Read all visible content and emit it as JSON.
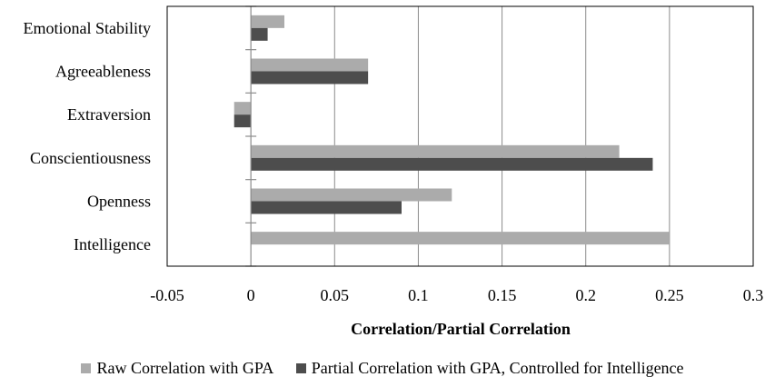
{
  "chart_data": {
    "type": "bar",
    "orientation": "horizontal",
    "title": "",
    "xlabel": "Correlation/Partial Correlation",
    "ylabel": "",
    "categories": [
      "Emotional Stability",
      "Agreeableness",
      "Extraversion",
      "Conscientiousness",
      "Openness",
      "Intelligence"
    ],
    "series": [
      {
        "name": "Raw Correlation with GPA",
        "color": "#ababab",
        "values": [
          0.02,
          0.07,
          -0.01,
          0.22,
          0.12,
          0.25
        ]
      },
      {
        "name": "Partial Correlation with GPA, Controlled for Intelligence",
        "color": "#4d4d4d",
        "values": [
          0.01,
          0.07,
          -0.01,
          0.24,
          0.09,
          null
        ]
      }
    ],
    "xlim": [
      -0.05,
      0.3
    ],
    "xticks": [
      "-0.05",
      "0",
      "0.05",
      "0.1",
      "0.15",
      "0.2",
      "0.25",
      "0.3"
    ],
    "grid": "vertical",
    "legend_position": "bottom"
  }
}
